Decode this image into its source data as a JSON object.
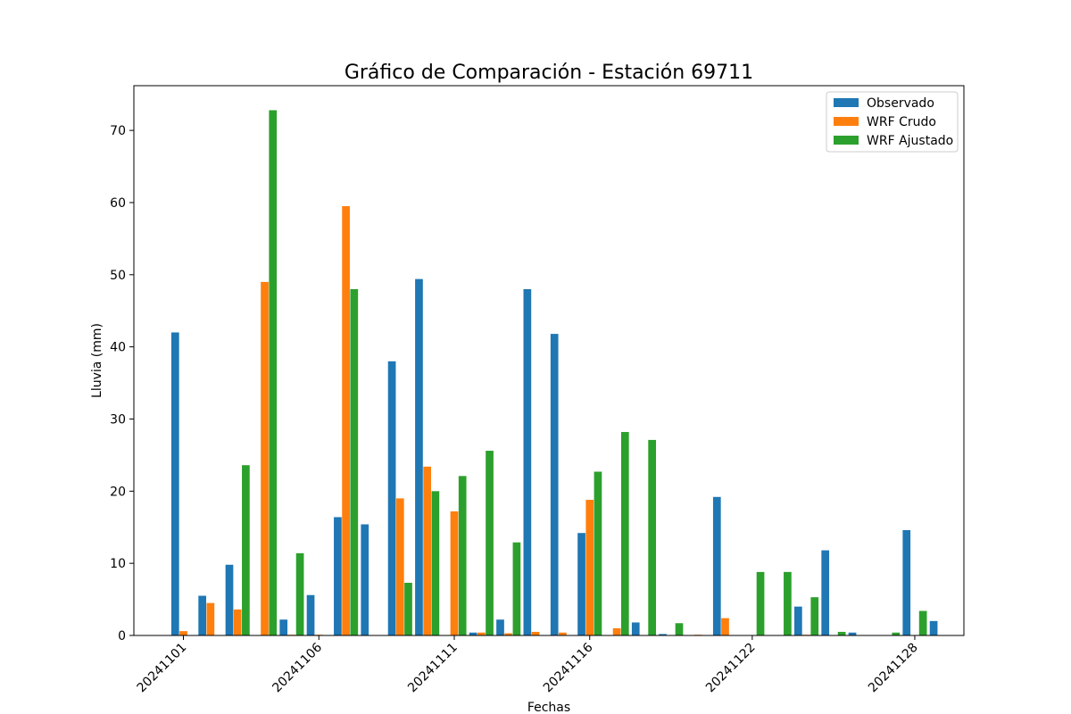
{
  "chart_data": {
    "type": "bar",
    "title": "Gráfico de Comparación - Estación 69711",
    "xlabel": "Fechas",
    "ylabel": "Lluvia (mm)",
    "ylim": [
      0,
      76.2
    ],
    "yticks": [
      0,
      10,
      20,
      30,
      40,
      50,
      60,
      70
    ],
    "x": [
      "20241101",
      "20241102",
      "20241103",
      "20241104",
      "20241105",
      "20241106",
      "20241107",
      "20241108",
      "20241109",
      "20241110",
      "20241111",
      "20241112",
      "20241113",
      "20241114",
      "20241115",
      "20241116",
      "20241117",
      "20241118",
      "20241119",
      "20241120",
      "20241121",
      "20241122",
      "20241123",
      "20241124",
      "20241125",
      "20241126",
      "20241127",
      "20241128",
      "20241129",
      "20241130"
    ],
    "xtick_labels": [
      "20241101",
      "20241106",
      "20241111",
      "20241116",
      "20241122",
      "20241128"
    ],
    "legend_position": "upper right",
    "series": [
      {
        "name": "Observado",
        "color": "#1f77b4",
        "values": [
          42.0,
          5.5,
          9.8,
          0,
          2.2,
          5.6,
          16.4,
          15.4,
          38.0,
          49.4,
          0,
          0.4,
          2.2,
          48.0,
          41.8,
          14.2,
          0,
          1.8,
          0.2,
          0,
          19.2,
          0,
          0,
          4.0,
          11.8,
          0.4,
          0,
          14.6,
          2.0,
          0
        ]
      },
      {
        "name": "WRF Crudo",
        "color": "#ff7f0e",
        "values": [
          0.6,
          4.5,
          3.6,
          49.0,
          0.1,
          0.1,
          59.5,
          0,
          19.0,
          23.4,
          17.2,
          0.4,
          0.3,
          0.5,
          0.4,
          18.8,
          1.0,
          0,
          0,
          0.1,
          2.4,
          0,
          0,
          0.1,
          0,
          0,
          0,
          0,
          0,
          0
        ]
      },
      {
        "name": "WRF Ajustado",
        "color": "#2ca02c",
        "values": [
          0,
          0,
          23.6,
          72.8,
          11.4,
          0,
          48.0,
          0,
          7.3,
          20.0,
          22.1,
          25.6,
          12.9,
          0,
          0,
          22.7,
          28.2,
          27.1,
          1.7,
          0,
          0,
          8.8,
          8.8,
          5.3,
          0.5,
          0,
          0.4,
          3.4,
          0,
          0
        ]
      }
    ]
  }
}
